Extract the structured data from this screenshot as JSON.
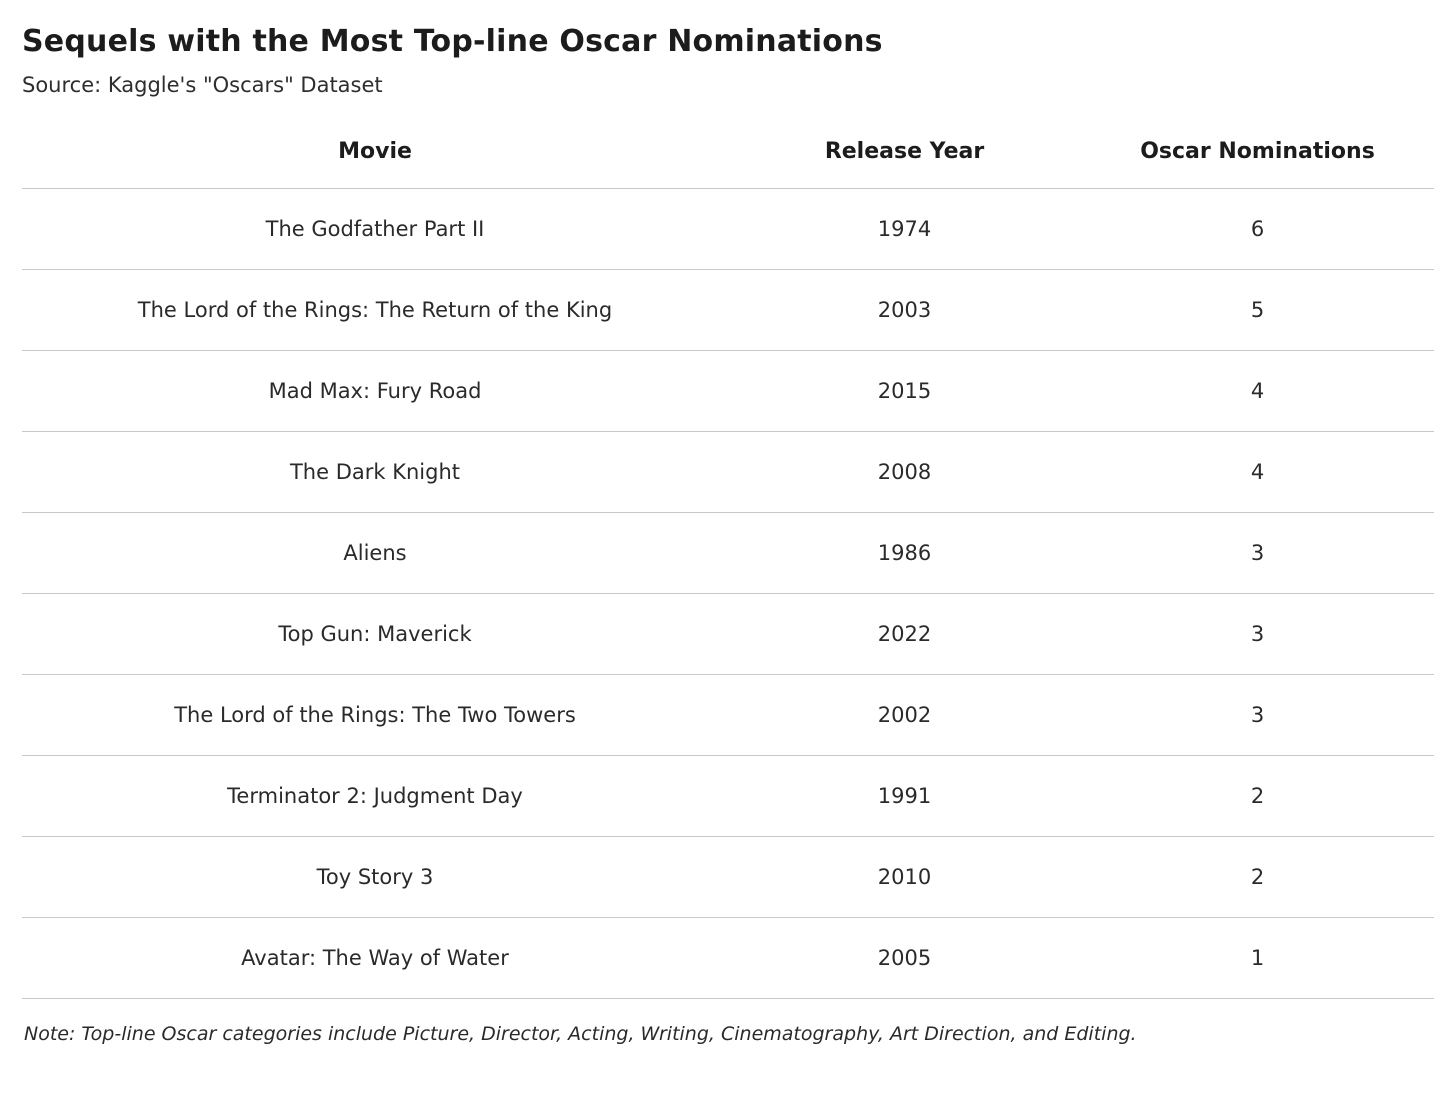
{
  "colors": {
    "background": "#ffffff",
    "title_text": "#1c1c1c",
    "body_text": "#2a2a2a",
    "divider": "#c9c9c9"
  },
  "chart_data": {
    "type": "table",
    "title": "Sequels with the Most Top-line Oscar Nominations",
    "source": "Source: Kaggle's \"Oscars\" Dataset",
    "columns": [
      "Movie",
      "Release Year",
      "Oscar Nominations"
    ],
    "rows": [
      {
        "movie": "The Godfather Part II",
        "release_year": "1974",
        "oscar_nominations": "6"
      },
      {
        "movie": "The Lord of the Rings: The Return of the King",
        "release_year": "2003",
        "oscar_nominations": "5"
      },
      {
        "movie": "Mad Max: Fury Road",
        "release_year": "2015",
        "oscar_nominations": "4"
      },
      {
        "movie": "The Dark Knight",
        "release_year": "2008",
        "oscar_nominations": "4"
      },
      {
        "movie": "Aliens",
        "release_year": "1986",
        "oscar_nominations": "3"
      },
      {
        "movie": "Top Gun: Maverick",
        "release_year": "2022",
        "oscar_nominations": "3"
      },
      {
        "movie": "The Lord of the Rings: The Two Towers",
        "release_year": "2002",
        "oscar_nominations": "3"
      },
      {
        "movie": "Terminator 2: Judgment Day",
        "release_year": "1991",
        "oscar_nominations": "2"
      },
      {
        "movie": "Toy Story 3",
        "release_year": "2010",
        "oscar_nominations": "2"
      },
      {
        "movie": "Avatar: The Way of Water",
        "release_year": "2005",
        "oscar_nominations": "1"
      }
    ],
    "note": "Note: Top-line Oscar categories include Picture, Director, Acting, Writing, Cinematography, Art Direction, and Editing."
  }
}
